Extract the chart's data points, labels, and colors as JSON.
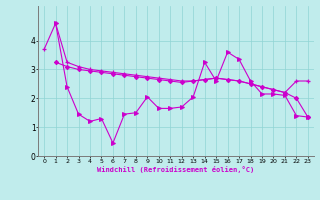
{
  "xlabel": "Windchill (Refroidissement éolien,°C)",
  "bg_color": "#c0ecec",
  "grid_color": "#90d4d4",
  "line_color": "#cc00cc",
  "xlim": [
    -0.5,
    23.5
  ],
  "ylim": [
    0,
    5.2
  ],
  "yticks": [
    0,
    1,
    2,
    3,
    4
  ],
  "xticks": [
    0,
    1,
    2,
    3,
    4,
    5,
    6,
    7,
    8,
    9,
    10,
    11,
    12,
    13,
    14,
    15,
    16,
    17,
    18,
    19,
    20,
    21,
    22,
    23
  ],
  "series1_x": [
    0,
    1,
    2,
    3,
    4,
    5,
    6,
    7,
    8,
    9,
    10,
    11,
    12,
    13,
    14,
    15,
    16,
    17,
    18,
    19,
    20,
    21,
    22,
    23
  ],
  "series1_y": [
    3.7,
    4.6,
    3.25,
    3.1,
    3.0,
    2.95,
    2.9,
    2.85,
    2.8,
    2.75,
    2.7,
    2.65,
    2.6,
    2.6,
    2.65,
    2.7,
    2.65,
    2.6,
    2.5,
    2.4,
    2.3,
    2.2,
    2.6,
    2.6
  ],
  "series2_x": [
    1,
    2,
    3,
    4,
    5,
    6,
    7,
    8,
    9,
    10,
    11,
    12,
    13,
    14,
    15,
    16,
    17,
    18,
    19,
    20,
    21,
    22,
    23
  ],
  "series2_y": [
    4.6,
    2.4,
    1.45,
    1.2,
    1.3,
    0.45,
    1.45,
    1.5,
    2.05,
    1.65,
    1.65,
    1.7,
    2.05,
    3.25,
    2.6,
    3.6,
    3.35,
    2.6,
    2.15,
    2.15,
    2.1,
    1.4,
    1.35
  ],
  "series3_x": [
    1,
    2,
    3,
    4,
    5,
    6,
    7,
    8,
    9,
    10,
    11,
    12,
    13,
    14,
    15,
    16,
    17,
    18,
    19,
    20,
    21,
    22,
    23
  ],
  "series3_y": [
    3.25,
    3.1,
    3.0,
    2.95,
    2.9,
    2.85,
    2.8,
    2.75,
    2.7,
    2.65,
    2.6,
    2.55,
    2.6,
    2.65,
    2.7,
    2.65,
    2.6,
    2.5,
    2.4,
    2.3,
    2.2,
    2.0,
    1.35
  ]
}
